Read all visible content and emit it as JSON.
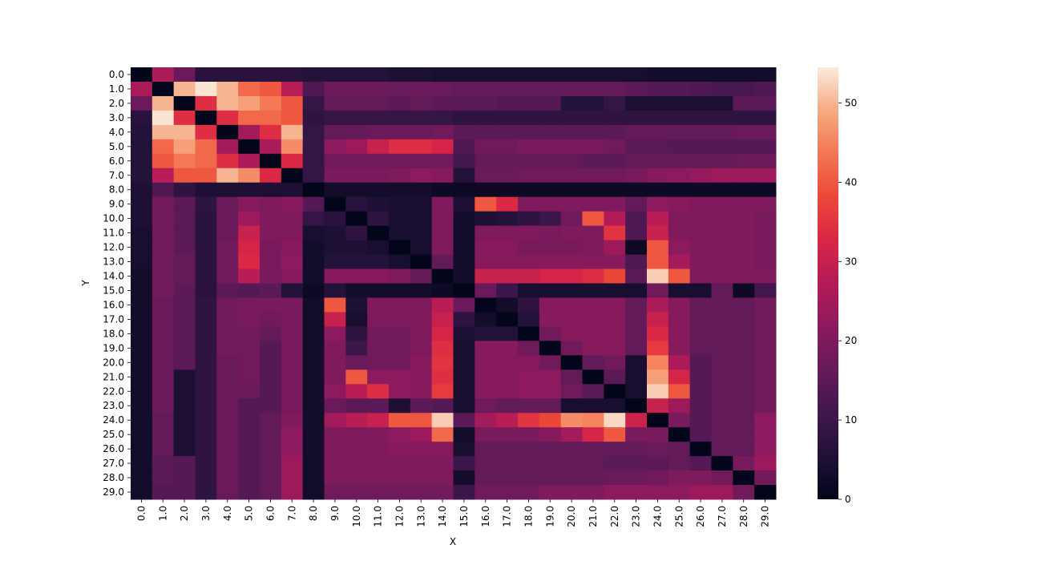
{
  "chart_data": {
    "type": "heatmap",
    "title": "",
    "xlabel": "X",
    "ylabel": "Y",
    "x_categories": [
      "0.0",
      "1.0",
      "2.0",
      "3.0",
      "4.0",
      "5.0",
      "6.0",
      "7.0",
      "8.0",
      "9.0",
      "10.0",
      "11.0",
      "12.0",
      "13.0",
      "14.0",
      "15.0",
      "16.0",
      "17.0",
      "18.0",
      "19.0",
      "20.0",
      "21.0",
      "22.0",
      "23.0",
      "24.0",
      "25.0",
      "26.0",
      "27.0",
      "28.0",
      "29.0"
    ],
    "y_categories": [
      "0.0",
      "1.0",
      "2.0",
      "3.0",
      "4.0",
      "5.0",
      "6.0",
      "7.0",
      "8.0",
      "9.0",
      "10.0",
      "11.0",
      "12.0",
      "13.0",
      "14.0",
      "15.0",
      "16.0",
      "17.0",
      "18.0",
      "19.0",
      "20.0",
      "21.0",
      "22.0",
      "23.0",
      "24.0",
      "25.0",
      "26.0",
      "27.0",
      "28.0",
      "29.0"
    ],
    "values": [
      [
        0,
        26,
        17,
        7,
        7,
        7,
        7,
        7,
        6,
        6,
        6,
        6,
        5,
        5,
        4,
        4,
        4,
        4,
        4,
        4,
        4,
        4,
        4,
        4,
        3,
        3,
        3,
        3,
        3,
        3
      ],
      [
        26,
        0,
        50,
        54,
        50,
        42,
        40,
        28,
        13,
        17,
        17,
        17,
        17,
        17,
        17,
        16,
        16,
        16,
        16,
        16,
        16,
        16,
        16,
        15,
        14,
        14,
        13,
        12,
        12,
        13
      ],
      [
        17,
        50,
        0,
        34,
        50,
        48,
        44,
        40,
        9,
        16,
        16,
        16,
        15,
        16,
        15,
        15,
        15,
        14,
        14,
        14,
        6,
        6,
        9,
        5,
        5,
        5,
        5,
        5,
        15,
        15
      ],
      [
        7,
        54,
        34,
        0,
        34,
        42,
        42,
        40,
        8,
        9,
        9,
        9,
        9,
        9,
        9,
        8,
        8,
        8,
        8,
        8,
        8,
        8,
        8,
        8,
        8,
        8,
        8,
        8,
        8,
        8
      ],
      [
        6,
        50,
        50,
        34,
        0,
        25,
        34,
        50,
        9,
        16,
        16,
        17,
        17,
        17,
        18,
        15,
        15,
        15,
        15,
        15,
        15,
        15,
        15,
        16,
        16,
        16,
        16,
        16,
        17,
        17
      ],
      [
        6,
        42,
        48,
        42,
        25,
        0,
        26,
        46,
        9,
        22,
        24,
        30,
        34,
        34,
        32,
        13,
        18,
        18,
        19,
        19,
        19,
        19,
        18,
        15,
        15,
        14,
        14,
        14,
        14,
        14
      ],
      [
        6,
        40,
        44,
        42,
        34,
        26,
        0,
        33,
        9,
        18,
        18,
        18,
        18,
        18,
        18,
        11,
        16,
        16,
        16,
        16,
        16,
        15,
        15,
        16,
        16,
        16,
        16,
        16,
        17,
        17
      ],
      [
        6,
        28,
        40,
        40,
        50,
        46,
        33,
        0,
        9,
        19,
        19,
        19,
        20,
        22,
        21,
        6,
        17,
        17,
        18,
        18,
        18,
        18,
        18,
        19,
        21,
        22,
        23,
        24,
        24,
        24
      ],
      [
        5,
        13,
        8,
        5,
        5,
        5,
        5,
        5,
        0,
        3,
        3,
        3,
        3,
        3,
        2,
        2,
        2,
        2,
        2,
        2,
        2,
        2,
        2,
        2,
        2,
        2,
        2,
        2,
        2,
        2
      ],
      [
        5,
        18,
        15,
        8,
        17,
        21,
        20,
        21,
        14,
        0,
        7,
        5,
        4,
        4,
        20,
        5,
        40,
        33,
        20,
        20,
        20,
        20,
        20,
        16,
        22,
        21,
        20,
        20,
        20,
        20
      ],
      [
        5,
        18,
        15,
        7,
        17,
        24,
        20,
        20,
        9,
        7,
        0,
        8,
        4,
        4,
        20,
        3,
        5,
        6,
        8,
        10,
        18,
        40,
        27,
        13,
        28,
        20,
        20,
        20,
        20,
        19
      ],
      [
        4,
        18,
        15,
        7,
        17,
        30,
        20,
        20,
        4,
        5,
        8,
        0,
        4,
        4,
        20,
        3,
        20,
        20,
        20,
        19,
        20,
        20,
        35,
        13,
        30,
        20,
        20,
        20,
        20,
        19
      ],
      [
        4,
        18,
        15,
        7,
        18,
        32,
        19,
        21,
        3,
        5,
        5,
        4,
        0,
        4,
        20,
        3,
        21,
        21,
        19,
        19,
        19,
        20,
        24,
        2,
        40,
        22,
        20,
        20,
        20,
        19
      ],
      [
        4,
        18,
        16,
        7,
        18,
        33,
        19,
        22,
        3,
        6,
        6,
        6,
        4,
        0,
        16,
        3,
        21,
        21,
        21,
        21,
        21,
        21,
        21,
        13,
        40,
        25,
        20,
        20,
        20,
        19
      ],
      [
        3,
        18,
        16,
        7,
        18,
        28,
        19,
        21,
        3,
        21,
        21,
        21,
        20,
        16,
        0,
        3,
        30,
        30,
        30,
        32,
        32,
        34,
        38,
        15,
        52,
        40,
        20,
        20,
        20,
        20
      ],
      [
        3,
        18,
        15,
        7,
        15,
        14,
        15,
        6,
        2,
        6,
        3,
        3,
        3,
        3,
        2,
        0,
        17,
        10,
        4,
        4,
        4,
        4,
        4,
        4,
        18,
        4,
        4,
        16,
        2,
        11
      ],
      [
        3,
        17,
        15,
        8,
        18,
        19,
        19,
        19,
        3,
        40,
        5,
        20,
        20,
        20,
        28,
        17,
        0,
        3,
        8,
        21,
        21,
        21,
        21,
        16,
        26,
        21,
        16,
        16,
        16,
        18
      ],
      [
        3,
        17,
        15,
        8,
        18,
        19,
        18,
        19,
        3,
        30,
        4,
        20,
        20,
        20,
        30,
        8,
        3,
        0,
        6,
        21,
        21,
        21,
        21,
        16,
        30,
        21,
        16,
        16,
        16,
        18
      ],
      [
        3,
        17,
        15,
        8,
        18,
        18,
        16,
        19,
        3,
        22,
        8,
        18,
        18,
        20,
        32,
        5,
        6,
        6,
        0,
        18,
        21,
        21,
        21,
        16,
        33,
        21,
        16,
        16,
        16,
        18
      ],
      [
        3,
        17,
        15,
        8,
        18,
        18,
        14,
        19,
        3,
        20,
        10,
        18,
        18,
        20,
        34,
        4,
        21,
        21,
        18,
        0,
        18,
        21,
        21,
        16,
        36,
        21,
        16,
        16,
        16,
        18
      ],
      [
        3,
        17,
        15,
        8,
        17,
        18,
        14,
        19,
        3,
        20,
        17,
        18,
        18,
        21,
        35,
        4,
        21,
        21,
        21,
        18,
        0,
        16,
        18,
        4,
        45,
        26,
        14,
        16,
        16,
        18
      ],
      [
        3,
        17,
        5,
        8,
        17,
        18,
        14,
        19,
        3,
        20,
        40,
        22,
        22,
        21,
        34,
        4,
        21,
        21,
        22,
        22,
        16,
        0,
        15,
        4,
        48,
        32,
        14,
        16,
        16,
        18
      ],
      [
        3,
        17,
        5,
        8,
        17,
        17,
        14,
        19,
        3,
        22,
        28,
        34,
        22,
        21,
        36,
        4,
        21,
        21,
        22,
        22,
        18,
        15,
        0,
        4,
        52,
        40,
        14,
        16,
        16,
        18
      ],
      [
        3,
        17,
        5,
        8,
        17,
        14,
        14,
        19,
        3,
        17,
        15,
        15,
        5,
        15,
        14,
        4,
        18,
        16,
        16,
        16,
        4,
        4,
        4,
        0,
        30,
        24,
        14,
        16,
        16,
        18
      ],
      [
        3,
        16,
        5,
        8,
        17,
        14,
        16,
        20,
        3,
        25,
        28,
        30,
        40,
        40,
        52,
        15,
        25,
        28,
        35,
        38,
        46,
        45,
        53,
        31,
        0,
        19,
        14,
        16,
        16,
        22
      ],
      [
        3,
        16,
        5,
        8,
        17,
        14,
        16,
        22,
        3,
        20,
        20,
        20,
        22,
        24,
        42,
        3,
        19,
        19,
        19,
        21,
        25,
        32,
        40,
        19,
        19,
        0,
        14,
        16,
        16,
        22
      ],
      [
        3,
        16,
        5,
        8,
        17,
        14,
        16,
        22,
        3,
        20,
        20,
        20,
        21,
        21,
        21,
        4,
        16,
        16,
        16,
        16,
        16,
        16,
        16,
        16,
        17,
        16,
        0,
        16,
        16,
        22
      ],
      [
        3,
        15,
        14,
        8,
        17,
        14,
        16,
        24,
        3,
        20,
        20,
        20,
        20,
        20,
        20,
        10,
        16,
        16,
        16,
        16,
        16,
        16,
        15,
        15,
        15,
        16,
        14,
        0,
        19,
        24
      ],
      [
        3,
        15,
        14,
        8,
        17,
        14,
        16,
        24,
        3,
        20,
        20,
        20,
        20,
        20,
        20,
        3,
        16,
        16,
        16,
        16,
        16,
        16,
        17,
        17,
        18,
        20,
        20,
        18,
        0,
        18
      ],
      [
        3,
        14,
        14,
        8,
        17,
        14,
        16,
        24,
        3,
        18,
        18,
        18,
        18,
        18,
        18,
        10,
        18,
        18,
        18,
        20,
        20,
        20,
        22,
        22,
        22,
        22,
        24,
        24,
        18,
        0
      ]
    ],
    "colorbar": {
      "min": 0,
      "max": 54.5,
      "ticks": [
        0,
        10,
        20,
        30,
        40,
        50
      ],
      "colormap": "rocket"
    }
  }
}
